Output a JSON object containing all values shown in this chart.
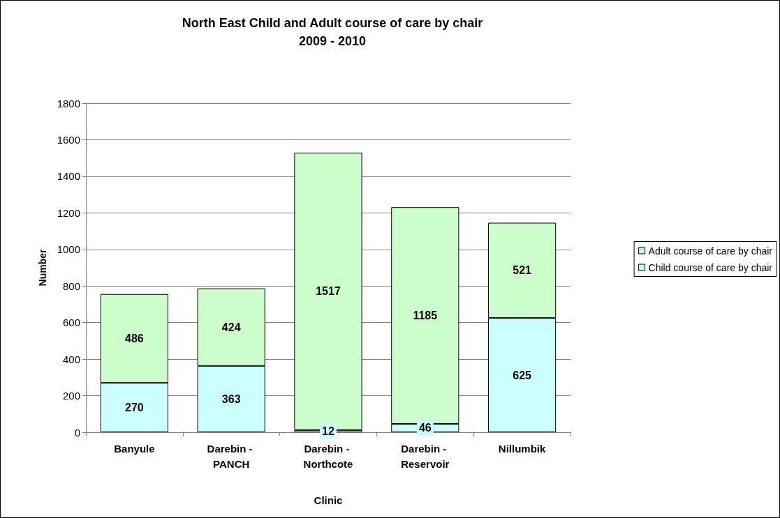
{
  "chart_data": {
    "type": "bar",
    "title": "North East Child and Adult course of care by chair\n2009 - 2010",
    "xlabel": "Clinic",
    "ylabel": "Number",
    "categories": [
      "Banyule",
      "Darebin - PANCH",
      "Darebin - Northcote",
      "Darebin - Reservoir",
      "Nillumbik"
    ],
    "series": [
      {
        "name": "Child course of care by chair",
        "color": "#ccffff",
        "values": [
          270,
          363,
          12,
          46,
          625
        ]
      },
      {
        "name": "Adult course of care by chair",
        "color": "#ccffcc",
        "values": [
          486,
          424,
          1517,
          1185,
          521
        ]
      }
    ],
    "stacked": true,
    "data_labels": true,
    "ylim": [
      0,
      1800
    ],
    "yticks": [
      0,
      200,
      400,
      600,
      800,
      1000,
      1200,
      1400,
      1600,
      1800
    ],
    "grid": "y",
    "legend": "right"
  }
}
